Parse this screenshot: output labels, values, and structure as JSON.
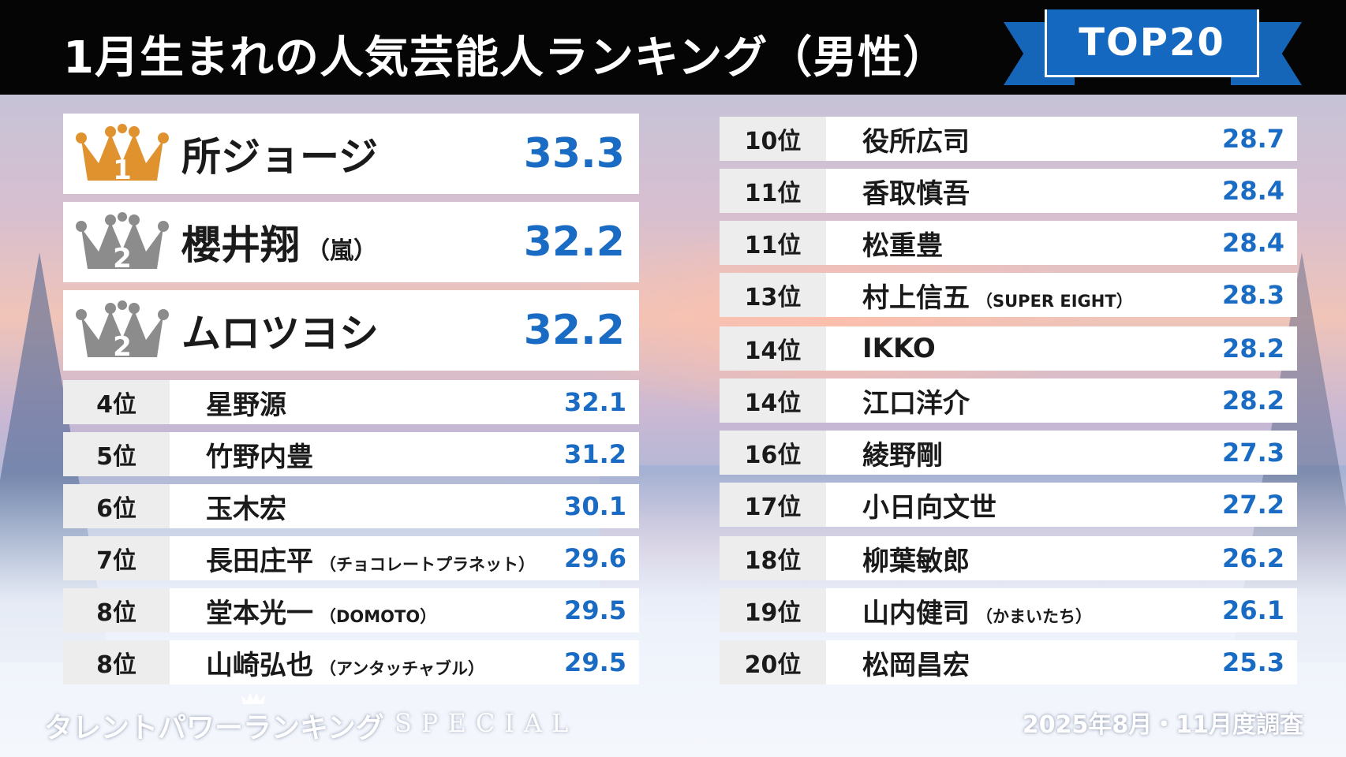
{
  "header": {
    "title": "1月生まれの人気芸能人ランキング（男性）",
    "badge": "TOP20"
  },
  "colors": {
    "accent_blue": "#1a6bc4",
    "badge_blue": "#1568bf",
    "gold_crown": "#e0922f",
    "silver_crown": "#8c8c8c",
    "header_bg": "#050505"
  },
  "top3": [
    {
      "medal": "1",
      "crown": "gold",
      "name": "所ジョージ",
      "note": "",
      "value": "33.3"
    },
    {
      "medal": "2",
      "crown": "silver",
      "name": "櫻井翔",
      "note": "（嵐）",
      "value": "32.2"
    },
    {
      "medal": "2",
      "crown": "silver",
      "name": "ムロツヨシ",
      "note": "",
      "value": "32.2"
    }
  ],
  "left_list": [
    {
      "rank": "4位",
      "name": "星野源",
      "note": "",
      "value": "32.1"
    },
    {
      "rank": "5位",
      "name": "竹野内豊",
      "note": "",
      "value": "31.2"
    },
    {
      "rank": "6位",
      "name": "玉木宏",
      "note": "",
      "value": "30.1"
    },
    {
      "rank": "7位",
      "name": "長田庄平",
      "note": "（チョコレートプラネット）",
      "value": "29.6"
    },
    {
      "rank": "8位",
      "name": "堂本光一",
      "note": "（DOMOTO）",
      "value": "29.5"
    },
    {
      "rank": "8位",
      "name": "山崎弘也",
      "note": "（アンタッチャブル）",
      "value": "29.5"
    }
  ],
  "right_list": [
    {
      "rank": "10位",
      "name": "役所広司",
      "note": "",
      "value": "28.7"
    },
    {
      "rank": "11位",
      "name": "香取慎吾",
      "note": "",
      "value": "28.4"
    },
    {
      "rank": "11位",
      "name": "松重豊",
      "note": "",
      "value": "28.4"
    },
    {
      "rank": "13位",
      "name": "村上信五",
      "note": "（SUPER EIGHT）",
      "value": "28.3"
    },
    {
      "rank": "14位",
      "name": "IKKO",
      "note": "",
      "value": "28.2"
    },
    {
      "rank": "14位",
      "name": "江口洋介",
      "note": "",
      "value": "28.2"
    },
    {
      "rank": "16位",
      "name": "綾野剛",
      "note": "",
      "value": "27.3"
    },
    {
      "rank": "17位",
      "name": "小日向文世",
      "note": "",
      "value": "27.2"
    },
    {
      "rank": "18位",
      "name": "柳葉敏郎",
      "note": "",
      "value": "26.2"
    },
    {
      "rank": "19位",
      "name": "山内健司",
      "note": "（かまいたち）",
      "value": "26.1"
    },
    {
      "rank": "20位",
      "name": "松岡昌宏",
      "note": "",
      "value": "25.3"
    }
  ],
  "footer": {
    "logo": "タレントパワーランキング",
    "special": "SPECIAL",
    "survey": "2025年8月・11月度調査"
  }
}
